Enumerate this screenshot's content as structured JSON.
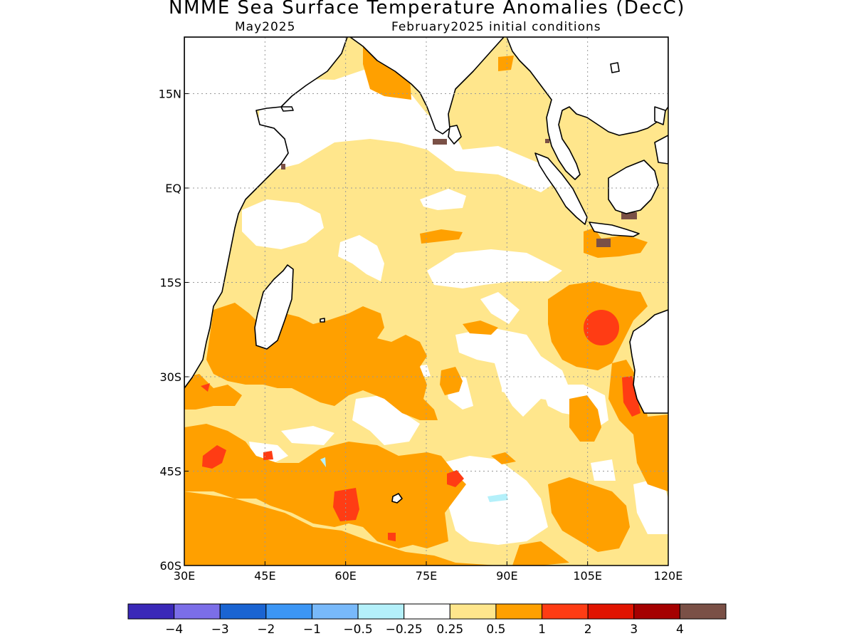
{
  "title": "NMME Sea Surface Temperature Anomalies (DecC)",
  "subtitle_left": "May2025",
  "subtitle_right": "February2025 initial conditions",
  "lon_ticks": [
    {
      "value": 30,
      "label": "30E"
    },
    {
      "value": 45,
      "label": "45E"
    },
    {
      "value": 60,
      "label": "60E"
    },
    {
      "value": 75,
      "label": "75E"
    },
    {
      "value": 90,
      "label": "90E"
    },
    {
      "value": 105,
      "label": "105E"
    },
    {
      "value": 120,
      "label": "120E"
    }
  ],
  "lat_ticks": [
    {
      "value": 15,
      "label": "15N"
    },
    {
      "value": 0,
      "label": "EQ"
    },
    {
      "value": -15,
      "label": "15S"
    },
    {
      "value": -30,
      "label": "30S"
    },
    {
      "value": -45,
      "label": "45S"
    },
    {
      "value": -60,
      "label": "60S"
    }
  ],
  "lon_range": [
    30,
    120
  ],
  "lat_range": [
    -60,
    24
  ],
  "colorbar": {
    "colors": [
      "#3a28b8",
      "#7b6ee8",
      "#1a64d2",
      "#3c96f5",
      "#78b9fa",
      "#b4f0fa",
      "#ffffff",
      "#ffe68c",
      "#ffa000",
      "#ff3c14",
      "#e11400",
      "#a50000",
      "#7a5046"
    ],
    "labels": [
      "−4",
      "−3",
      "−2",
      "−1",
      "−0.5",
      "−0.25",
      "0.25",
      "0.5",
      "1",
      "2",
      "3",
      "4"
    ]
  },
  "chart_data": {
    "type": "heatmap",
    "title": "NMME Sea Surface Temperature Anomalies (DecC)",
    "subtitle": "May2025 / February2025 initial conditions",
    "region": "Indian Ocean",
    "x_axis": {
      "range": [
        30,
        120
      ],
      "unit": "degrees E",
      "ticks": [
        "30E",
        "45E",
        "60E",
        "75E",
        "90E",
        "105E",
        "120E"
      ]
    },
    "y_axis": {
      "range": [
        -60,
        24
      ],
      "unit": "degrees",
      "ticks": [
        "15N",
        "EQ",
        "15S",
        "30S",
        "45S",
        "60S"
      ]
    },
    "levels": [
      -4,
      -3,
      -2,
      -1,
      -0.5,
      -0.25,
      0.25,
      0.5,
      1,
      2,
      3,
      4
    ],
    "background_anomaly_band": [
      0.25,
      0.5
    ],
    "regions": [
      {
        "band": [
          0.5,
          1
        ],
        "lon": [
          30,
          120
        ],
        "lat": [
          -60,
          -40
        ],
        "description": "broad warm belt across the southern ocean"
      },
      {
        "band": [
          0.5,
          1
        ],
        "lon": [
          35,
          78
        ],
        "lat": [
          -35,
          -18
        ],
        "description": "southwest Indian Ocean warm anomaly"
      },
      {
        "band": [
          0.5,
          1
        ],
        "lon": [
          88,
          115
        ],
        "lat": [
          -30,
          -14
        ],
        "description": "southeast Indian Ocean warm anomaly"
      },
      {
        "band": [
          1,
          2
        ],
        "lon": [
          105,
          110
        ],
        "lat": [
          -23,
          -20
        ],
        "description": "core west of Australia"
      },
      {
        "band": [
          1,
          2
        ],
        "lon": [
          112,
          115
        ],
        "lat": [
          -36,
          -30
        ],
        "description": "off southwest Australia"
      },
      {
        "band": [
          1,
          2
        ],
        "lon": [
          61,
          64
        ],
        "lat": [
          -53,
          -48
        ],
        "description": "southern ocean core"
      },
      {
        "band": [
          1,
          2
        ],
        "lon": [
          33,
          37
        ],
        "lat": [
          -44,
          -41
        ],
        "description": "southern ocean core"
      },
      {
        "band": [
          1,
          2
        ],
        "lon": [
          79,
          82
        ],
        "lat": [
          -47,
          -45
        ],
        "description": "southern ocean core"
      },
      {
        "band": [
          -0.25,
          0.25
        ],
        "lon": [
          68,
          100
        ],
        "lat": [
          -52,
          -40
        ],
        "description": "near-normal area"
      },
      {
        "band": [
          -0.25,
          0.25
        ],
        "lon": [
          75,
          95
        ],
        "lat": [
          -15,
          -10
        ],
        "description": "near-normal area"
      },
      {
        "band": [
          -0.5,
          -0.25
        ],
        "lon": [
          86,
          90
        ],
        "lat": [
          -50,
          -49
        ],
        "description": "small cool patch"
      },
      {
        "band": [
          -0.5,
          -0.25
        ],
        "lon": [
          55,
          56
        ],
        "lat": [
          -46,
          -44
        ],
        "description": "small cool patch"
      },
      {
        "band": [
          0.5,
          1
        ],
        "lon": [
          63,
          71
        ],
        "lat": [
          14,
          24
        ],
        "description": "northern Arabian Sea"
      }
    ]
  }
}
